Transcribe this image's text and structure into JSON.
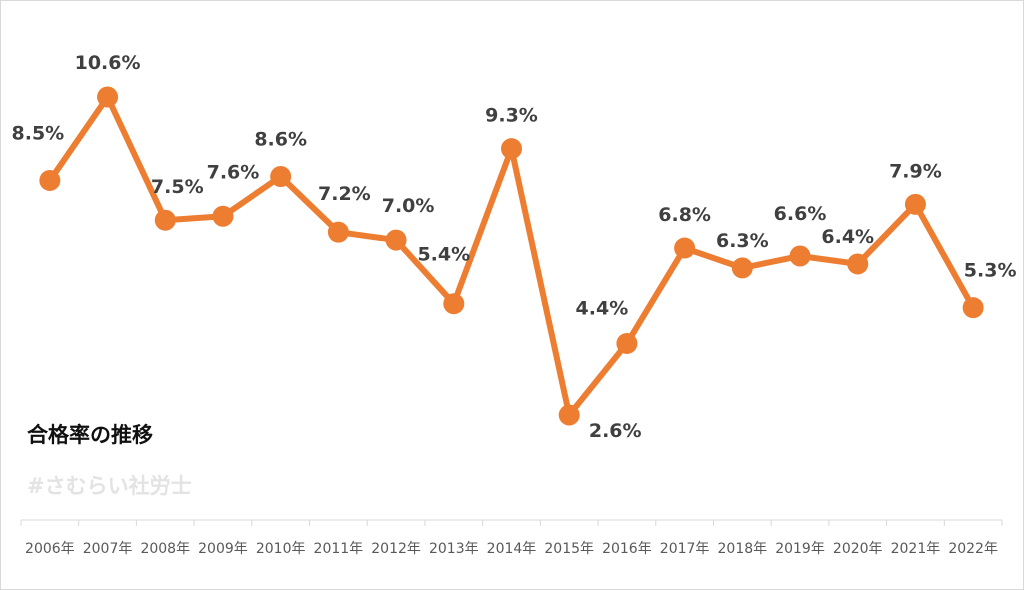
{
  "chart_data": {
    "type": "line",
    "title": "合格率の推移",
    "watermark": "#さむらい社労士",
    "categories": [
      "2006年",
      "2007年",
      "2008年",
      "2009年",
      "2010年",
      "2011年",
      "2012年",
      "2013年",
      "2014年",
      "2015年",
      "2016年",
      "2017年",
      "2018年",
      "2019年",
      "2020年",
      "2021年",
      "2022年"
    ],
    "values": [
      8.5,
      10.6,
      7.5,
      7.6,
      8.6,
      7.2,
      7.0,
      5.4,
      9.3,
      2.6,
      4.4,
      6.8,
      6.3,
      6.6,
      6.4,
      7.9,
      5.3
    ],
    "data_labels": [
      "8.5%",
      "10.6%",
      "7.5%",
      "7.6%",
      "8.6%",
      "7.2%",
      "7.0%",
      "5.4%",
      "9.3%",
      "2.6%",
      "4.4%",
      "6.8%",
      "6.3%",
      "6.6%",
      "6.4%",
      "7.9%",
      "5.3%"
    ],
    "line_color": "#ED7D31",
    "label_color": "#404040",
    "axis_color": "#d9d9d9",
    "grid": false,
    "legend": "none",
    "y_axis_visible": false
  }
}
